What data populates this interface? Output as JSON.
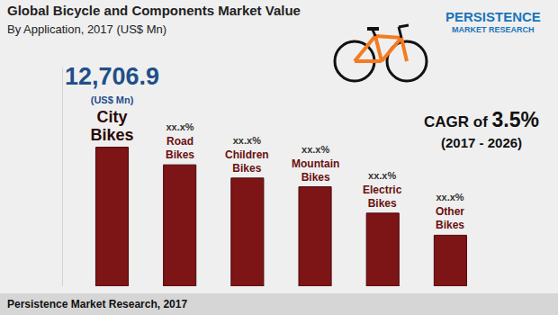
{
  "chart_data": {
    "type": "bar",
    "title": "Global Bicycle and Components Market Value",
    "subtitle": "By Application, 2017 (US$ Mn)",
    "categories": [
      "City Bikes",
      "Road Bikes",
      "Children Bikes",
      "Mountain Bikes",
      "Electric Bikes",
      "Other Bikes"
    ],
    "values": [
      12706.9,
      11100,
      9890,
      9090,
      6680,
      4660
    ],
    "value_labels": [
      "12,706.9\n(US$ Mn)",
      "xx.x%",
      "xx.x%",
      "xx.x%",
      "xx.x%",
      "xx.x%"
    ],
    "data_labels": true,
    "color": "#7d1416",
    "ylim": [
      0,
      20000
    ],
    "tick_labels": false,
    "grid": false,
    "annotations": [
      {
        "text": "CAGR of 3.5%"
      },
      {
        "text": "(2017 - 2026)"
      }
    ],
    "source": "Persistence Market Research, 2017",
    "logo": [
      "PERSISTENCE",
      "MARKET RESEARCH"
    ]
  }
}
